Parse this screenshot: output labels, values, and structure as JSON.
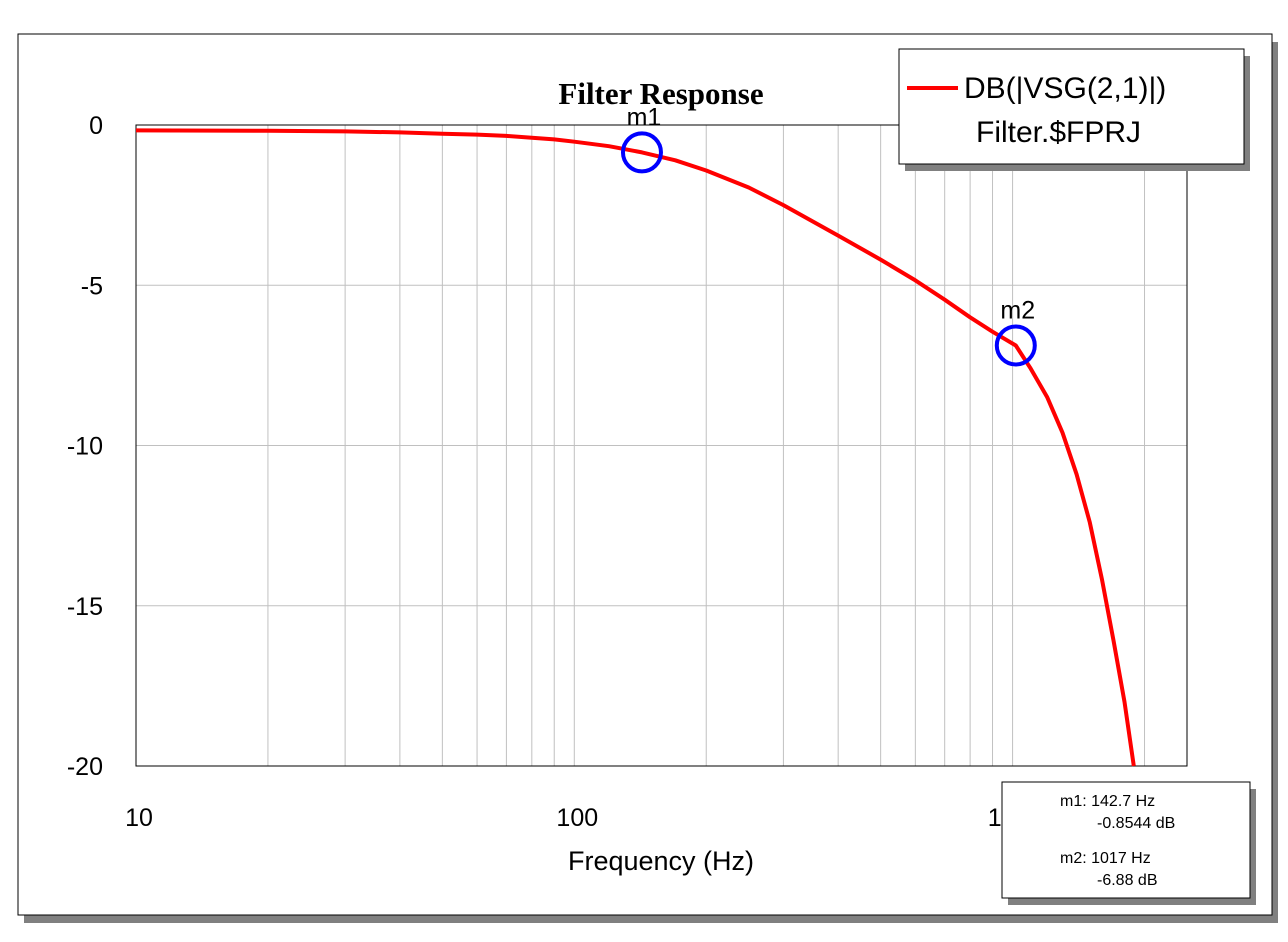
{
  "chart_data": {
    "type": "line",
    "title": "Filter Response",
    "xlabel": "Frequency (Hz)",
    "ylabel": "",
    "x_scale": "log",
    "xlim": [
      10,
      2500
    ],
    "ylim": [
      -20,
      0
    ],
    "x_ticks": [
      {
        "value": 10,
        "label": "10"
      },
      {
        "value": 100,
        "label": "100"
      },
      {
        "value": 1000,
        "label": "1000"
      }
    ],
    "y_ticks": [
      {
        "value": 0,
        "label": "0"
      },
      {
        "value": -5,
        "label": "-5"
      },
      {
        "value": -10,
        "label": "-10"
      },
      {
        "value": -15,
        "label": "-15"
      },
      {
        "value": -20,
        "label": "-20"
      }
    ],
    "grid": true,
    "legend_position": "top-right",
    "series": [
      {
        "name": "DB(|VSG(2,1)|)",
        "source": "Filter.$FPRJ",
        "color": "#ff0000",
        "points": [
          [
            10,
            -0.17
          ],
          [
            20,
            -0.18
          ],
          [
            30,
            -0.2
          ],
          [
            40,
            -0.23
          ],
          [
            50,
            -0.27
          ],
          [
            60,
            -0.3
          ],
          [
            70,
            -0.34
          ],
          [
            80,
            -0.4
          ],
          [
            90,
            -0.45
          ],
          [
            100,
            -0.52
          ],
          [
            120,
            -0.66
          ],
          [
            142.7,
            -0.8544
          ],
          [
            170,
            -1.1
          ],
          [
            200,
            -1.42
          ],
          [
            250,
            -1.95
          ],
          [
            300,
            -2.5
          ],
          [
            400,
            -3.45
          ],
          [
            500,
            -4.2
          ],
          [
            600,
            -4.85
          ],
          [
            700,
            -5.45
          ],
          [
            800,
            -6.0
          ],
          [
            900,
            -6.45
          ],
          [
            1017,
            -6.88
          ],
          [
            1100,
            -7.6
          ],
          [
            1200,
            -8.5
          ],
          [
            1300,
            -9.6
          ],
          [
            1400,
            -10.9
          ],
          [
            1500,
            -12.4
          ],
          [
            1600,
            -14.2
          ],
          [
            1700,
            -16.1
          ],
          [
            1800,
            -18.0
          ],
          [
            1890,
            -20.0
          ]
        ]
      }
    ],
    "markers": [
      {
        "name": "m1",
        "x": 142.7,
        "y": -0.8544,
        "freq_text": "142.7 Hz",
        "value_text": "-0.8544 dB"
      },
      {
        "name": "m2",
        "x": 1017,
        "y": -6.88,
        "freq_text": "1017 Hz",
        "value_text": "-6.88 dB"
      }
    ],
    "colors": {
      "series": "#ff0000",
      "marker": "#0000ff",
      "grid": "#c0c0c0"
    }
  }
}
